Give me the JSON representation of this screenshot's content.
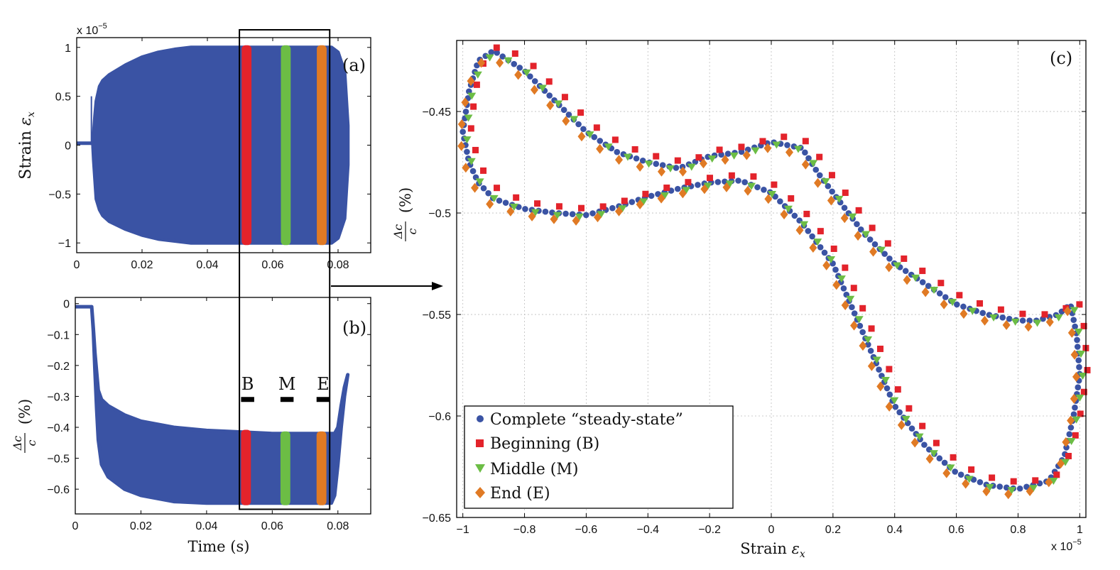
{
  "colors": {
    "steady": "#3a53a4",
    "beginning": "#e3232b",
    "middle": "#6cbd45",
    "end": "#e07a24"
  },
  "chart_data": [
    {
      "panel": "a",
      "type": "area",
      "panel_label": "(a)",
      "ylabel_text": "Strain",
      "ylabel_symbol": "ε",
      "ylabel_sub": "x",
      "y_scale_note": "x 10",
      "y_scale_exp": "−5",
      "xlim": [
        0,
        0.09
      ],
      "ylim": [
        -1.1,
        1.1
      ],
      "x_ticks": [
        0,
        0.02,
        0.04,
        0.06,
        0.08
      ],
      "x_tick_labels": [
        "0",
        "0.02",
        "0.04",
        "0.06",
        "0.08"
      ],
      "y_ticks": [
        1,
        0.5,
        0,
        -0.5,
        -1
      ],
      "y_tick_labels": [
        "1",
        "0.5",
        "0",
        "−0.5",
        "−1"
      ],
      "envelope": {
        "x": [
          0.005,
          0.0052,
          0.0056,
          0.006,
          0.007,
          0.008,
          0.01,
          0.015,
          0.02,
          0.025,
          0.03,
          0.035,
          0.04,
          0.05,
          0.06,
          0.07,
          0.078,
          0.08,
          0.082,
          0.083
        ],
        "upper": [
          0.02,
          0.12,
          0.3,
          0.45,
          0.6,
          0.66,
          0.72,
          0.82,
          0.9,
          0.95,
          0.98,
          1.0,
          1.0,
          1.0,
          1.0,
          1.0,
          1.0,
          0.95,
          0.75,
          0.2
        ],
        "lower": [
          -0.02,
          -0.15,
          -0.35,
          -0.55,
          -0.66,
          -0.72,
          -0.78,
          -0.86,
          -0.92,
          -0.96,
          -0.98,
          -1.0,
          -1.0,
          -1.0,
          -1.0,
          -1.0,
          -1.0,
          -0.95,
          -0.75,
          -0.2
        ],
        "flat_start": [
          0,
          0.005
        ],
        "spike": [
          0.0045,
          0.5
        ]
      },
      "highlights": [
        {
          "name": "Beginning (B)",
          "color_key": "beginning",
          "x0": 0.0505,
          "x1": 0.0535,
          "ymin": -1.0,
          "ymax": 1.0
        },
        {
          "name": "Middle (M)",
          "color_key": "middle",
          "x0": 0.0625,
          "x1": 0.0655,
          "ymin": -1.0,
          "ymax": 1.0
        },
        {
          "name": "End (E)",
          "color_key": "end",
          "x0": 0.0735,
          "x1": 0.0765,
          "ymin": -1.0,
          "ymax": 1.0
        }
      ]
    },
    {
      "panel": "b",
      "type": "area",
      "panel_label": "(b)",
      "xlabel": "Time (s)",
      "ylabel_frac_num": "Δc",
      "ylabel_frac_den": "c",
      "ylabel_unit": "(%)",
      "xlim": [
        0,
        0.09
      ],
      "ylim": [
        -0.68,
        0.02
      ],
      "x_ticks": [
        0,
        0.02,
        0.04,
        0.06,
        0.08
      ],
      "x_tick_labels": [
        "0",
        "0.02",
        "0.04",
        "0.06",
        "0.08"
      ],
      "y_ticks": [
        0,
        -0.1,
        -0.2,
        -0.3,
        -0.4,
        -0.5,
        -0.6
      ],
      "y_tick_labels": [
        "0",
        "−0.1",
        "−0.2",
        "−0.3",
        "−0.4",
        "−0.5",
        "−0.6"
      ],
      "envelope": {
        "x": [
          0.005,
          0.0055,
          0.006,
          0.0065,
          0.007,
          0.008,
          0.01,
          0.015,
          0.02,
          0.03,
          0.04,
          0.05,
          0.06,
          0.07,
          0.078,
          0.079,
          0.08,
          0.081,
          0.082,
          0.083
        ],
        "upper": [
          -0.01,
          -0.08,
          -0.16,
          -0.22,
          -0.28,
          -0.31,
          -0.33,
          -0.36,
          -0.38,
          -0.4,
          -0.41,
          -0.415,
          -0.42,
          -0.42,
          -0.42,
          -0.42,
          -0.4,
          -0.33,
          -0.27,
          -0.23
        ],
        "lower": [
          -0.01,
          -0.09,
          -0.22,
          -0.34,
          -0.44,
          -0.52,
          -0.56,
          -0.6,
          -0.62,
          -0.64,
          -0.645,
          -0.645,
          -0.645,
          -0.645,
          -0.645,
          -0.62,
          -0.52,
          -0.4,
          -0.3,
          -0.23
        ],
        "flat_start": [
          0,
          0.005
        ]
      },
      "highlights": [
        {
          "name": "Beginning (B)",
          "color_key": "beginning",
          "x0": 0.0505,
          "x1": 0.0535,
          "ymin": -0.645,
          "ymax": -0.415
        },
        {
          "name": "Middle (M)",
          "color_key": "middle",
          "x0": 0.0625,
          "x1": 0.0655,
          "ymin": -0.645,
          "ymax": -0.42
        },
        {
          "name": "End (E)",
          "color_key": "end",
          "x0": 0.0735,
          "x1": 0.0765,
          "ymin": -0.645,
          "ymax": -0.42
        }
      ],
      "bme_markers": [
        {
          "label": "B",
          "x0": 0.0505,
          "x1": 0.0545,
          "y": -0.31
        },
        {
          "label": "M",
          "x0": 0.0625,
          "x1": 0.0665,
          "y": -0.31
        },
        {
          "label": "E",
          "x0": 0.0735,
          "x1": 0.0775,
          "y": -0.31
        }
      ],
      "zoom_box": {
        "x0": 0.05,
        "x1": 0.0775,
        "y_top_panel_a": 1.18,
        "y_bottom_panel_b": -0.665
      }
    },
    {
      "panel": "c",
      "type": "scatter",
      "panel_label": "(c)",
      "xlabel_text": "Strain",
      "xlabel_symbol": "ε",
      "xlabel_sub": "x",
      "x_scale_note": "x 10",
      "x_scale_exp": "−5",
      "ylabel_frac_num": "Δc",
      "ylabel_frac_den": "c",
      "ylabel_unit": "(%)",
      "xlim": [
        -1.02,
        1.02
      ],
      "ylim": [
        -0.65,
        -0.415
      ],
      "grid": true,
      "x_ticks": [
        -1,
        -0.8,
        -0.6,
        -0.4,
        -0.2,
        0,
        0.2,
        0.4,
        0.6,
        0.8,
        1
      ],
      "x_tick_labels": [
        "−1",
        "−0.8",
        "−0.6",
        "−0.4",
        "−0.2",
        "0",
        "0.2",
        "0.4",
        "0.6",
        "0.8",
        "1"
      ],
      "y_ticks": [
        -0.45,
        -0.5,
        -0.55,
        -0.6,
        -0.65
      ],
      "y_tick_labels": [
        "−0.45",
        "−0.5",
        "−0.55",
        "−0.6",
        "−0.65"
      ],
      "legend_position": "bottom-left",
      "loop_path": {
        "x": [
          -1.0,
          -0.98,
          -0.95,
          -0.9,
          -0.8,
          -0.7,
          -0.6,
          -0.5,
          -0.4,
          -0.3,
          -0.2,
          -0.1,
          0.0,
          0.1,
          0.2,
          0.3,
          0.4,
          0.5,
          0.6,
          0.7,
          0.8,
          0.9,
          0.95,
          0.98,
          1.0,
          0.99,
          0.97,
          0.93,
          0.86,
          0.8,
          0.7,
          0.6,
          0.5,
          0.4,
          0.3,
          0.2,
          0.15,
          0.1,
          0.0,
          -0.1,
          -0.2,
          -0.3,
          -0.4,
          -0.5,
          -0.6,
          -0.7,
          -0.8,
          -0.9,
          -0.95,
          -0.98,
          -1.0
        ],
        "y": [
          -0.46,
          -0.475,
          -0.485,
          -0.493,
          -0.498,
          -0.5,
          -0.501,
          -0.497,
          -0.492,
          -0.488,
          -0.485,
          -0.484,
          -0.49,
          -0.505,
          -0.525,
          -0.56,
          -0.595,
          -0.615,
          -0.628,
          -0.634,
          -0.636,
          -0.632,
          -0.62,
          -0.6,
          -0.58,
          -0.56,
          -0.545,
          -0.55,
          -0.553,
          -0.553,
          -0.55,
          -0.545,
          -0.535,
          -0.525,
          -0.51,
          -0.49,
          -0.48,
          -0.468,
          -0.465,
          -0.47,
          -0.472,
          -0.478,
          -0.475,
          -0.47,
          -0.46,
          -0.445,
          -0.43,
          -0.42,
          -0.425,
          -0.44,
          -0.46
        ]
      },
      "series": [
        {
          "name": "Complete “steady-state”",
          "color_key": "steady",
          "marker": "circle",
          "count": 260,
          "offset": [
            0,
            0
          ]
        },
        {
          "name": "Beginning (B)",
          "color_key": "beginning",
          "marker": "square",
          "count": 80,
          "offset": [
            0.025,
            0.003
          ]
        },
        {
          "name": "Middle (M)",
          "color_key": "middle",
          "marker": "triangle-down",
          "count": 80,
          "offset": [
            0.01,
            -0.001
          ]
        },
        {
          "name": "End (E)",
          "color_key": "end",
          "marker": "diamond",
          "count": 80,
          "offset": [
            -0.01,
            -0.003
          ]
        }
      ]
    }
  ]
}
